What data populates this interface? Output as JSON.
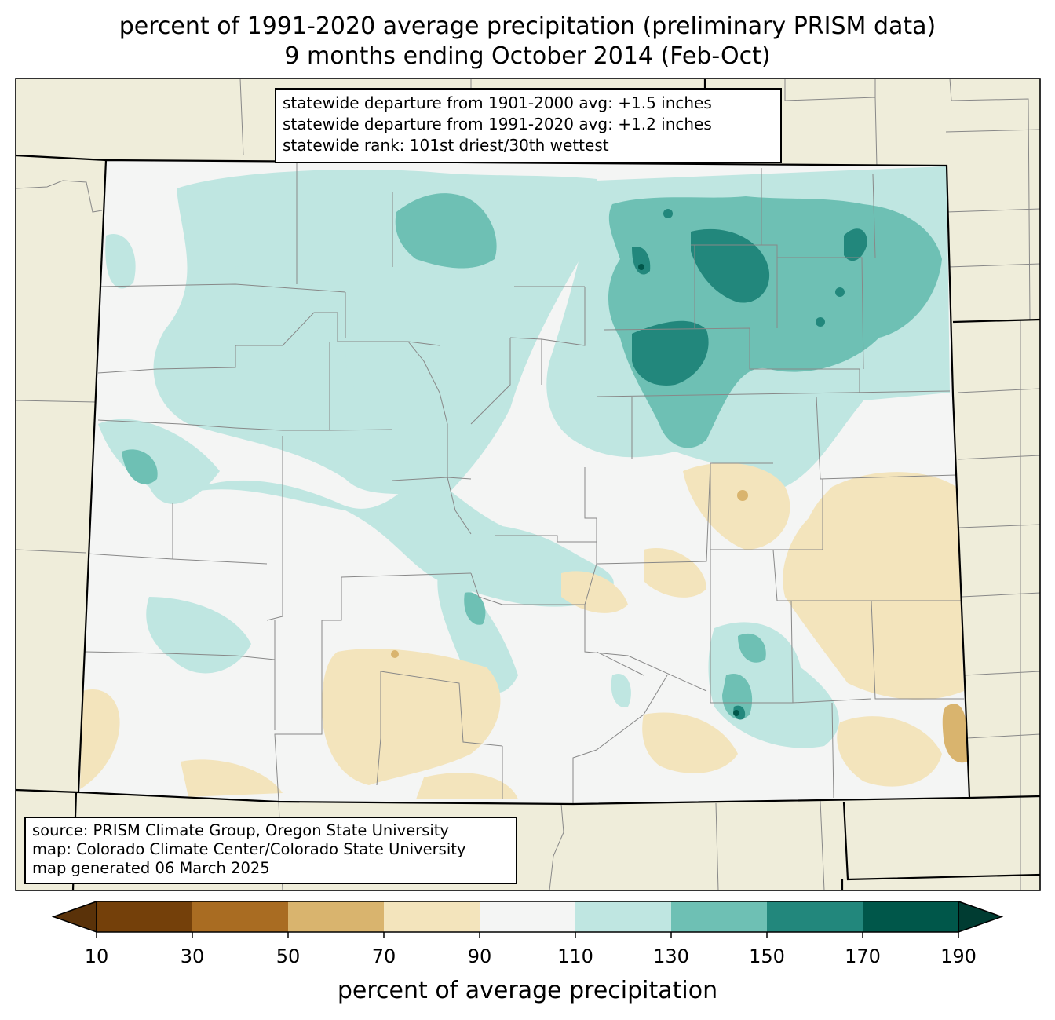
{
  "title": {
    "line1": "percent of 1991-2020 average precipitation (preliminary PRISM data)",
    "line2": "9 months ending October 2014 (Feb-Oct)"
  },
  "stats_box": {
    "line1": "statewide departure from 1901-2000 avg: +1.5 inches",
    "line2": "statewide departure from 1991-2020 avg: +1.2 inches",
    "line3": "statewide rank: 101st driest/30th wettest"
  },
  "source_box": {
    "line1": "source: PRISM Climate Group, Oregon State University",
    "line2": "map: Colorado Climate Center/Colorado State University",
    "line3": "map generated 06 March 2025"
  },
  "colorbar": {
    "label": "percent of average precipitation",
    "ticks": [
      "10",
      "30",
      "50",
      "70",
      "90",
      "110",
      "130",
      "150",
      "170",
      "190"
    ],
    "colors": [
      "#74400a",
      "#a96c22",
      "#d9b46e",
      "#f3e4bc",
      "#f4f5f4",
      "#bfe6e1",
      "#6ec0b4",
      "#22877c",
      "#00574a"
    ],
    "under_color": "#5a3209",
    "over_color": "#003c32"
  },
  "colors": {
    "background_land": "#efedda",
    "state_border": "#000000",
    "county_border": "#888888"
  }
}
